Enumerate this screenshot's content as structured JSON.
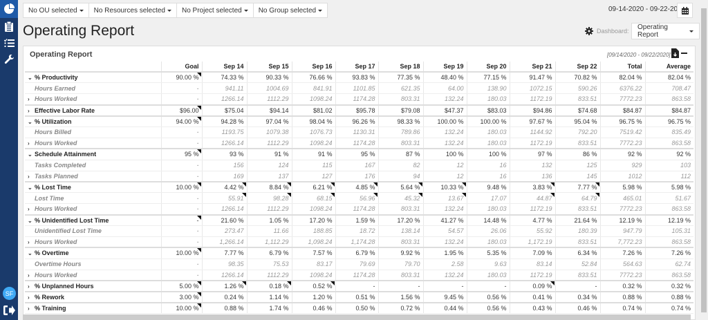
{
  "sidebar": {
    "items": [
      {
        "name": "dashboard",
        "icon": "pie-chart-icon"
      },
      {
        "name": "reports",
        "icon": "clipboard-icon"
      },
      {
        "name": "tasks",
        "icon": "checklist-icon"
      },
      {
        "name": "settings",
        "icon": "wrench-icon"
      }
    ],
    "avatar_initials": "SF",
    "logout_icon": "sign-out-icon"
  },
  "filters": {
    "ou": "No OU selected",
    "resources": "No Resources selected",
    "project": "No Project selected",
    "group": "No Group selected"
  },
  "date_range": "09-14-2020 - 09-22-2020",
  "page_title": "Operating Report",
  "dashboard": {
    "label": "Dashboard:",
    "selected": "Operating Report"
  },
  "panel": {
    "title": "Operating Report",
    "range": "[09/14/2020 - 09/22/2020]"
  },
  "table": {
    "columns": [
      "",
      "Goal",
      "Sep 14",
      "Sep 15",
      "Sep 16",
      "Sep 17",
      "Sep 18",
      "Sep 19",
      "Sep 20",
      "Sep 21",
      "Sep 22",
      "Total",
      "Average"
    ],
    "rows": [
      {
        "type": "group",
        "toggle": "v",
        "label": "% Productivity",
        "cells": [
          "90.00 %",
          "74.33 %",
          "90.33 %",
          "76.66 %",
          "93.83 %",
          "77.35 %",
          "48.40 %",
          "77.15 %",
          "91.47 %",
          "70.82 %",
          "82.04 %",
          "82.04 %"
        ],
        "flags": [
          0
        ]
      },
      {
        "type": "sub",
        "toggle": "",
        "label": "Hours Earned",
        "cells": [
          "-",
          "941.11",
          "1004.69",
          "841.91",
          "1101.85",
          "621.35",
          "64.00",
          "138.90",
          "1072.15",
          "590.26",
          "6376.22",
          "708.47"
        ],
        "flags": []
      },
      {
        "type": "sub",
        "toggle": ">",
        "label": "Hours Worked",
        "cells": [
          "-",
          "1266.14",
          "1112.29",
          "1098.24",
          "1174.28",
          "803.31",
          "132.24",
          "180.03",
          "1172.19",
          "833.51",
          "7772.23",
          "863.58"
        ],
        "flags": []
      },
      {
        "type": "group",
        "toggle": ">",
        "label": "Effective Labor Rate",
        "cells": [
          "$96.00",
          "$75.04",
          "$94.14",
          "$81.02",
          "$95.78",
          "$79.08",
          "$47.37",
          "$83.03",
          "$94.86",
          "$74.68",
          "$84.87",
          "$84.87"
        ],
        "flags": [
          0
        ]
      },
      {
        "type": "group",
        "toggle": "v",
        "label": "% Utilization",
        "cells": [
          "94.00 %",
          "94.28 %",
          "97.04 %",
          "98.04 %",
          "96.26 %",
          "98.33 %",
          "100.00 %",
          "100.00 %",
          "97.67 %",
          "95.04 %",
          "96.75 %",
          "96.75 %"
        ],
        "flags": [
          0
        ]
      },
      {
        "type": "sub",
        "toggle": "",
        "label": "Hours Billed",
        "cells": [
          "-",
          "1193.75",
          "1079.38",
          "1076.73",
          "1130.31",
          "789.86",
          "132.24",
          "180.03",
          "1144.92",
          "792.20",
          "7519.42",
          "835.49"
        ],
        "flags": []
      },
      {
        "type": "sub",
        "toggle": ">",
        "label": "Hours Worked",
        "cells": [
          "-",
          "1266.14",
          "1112.29",
          "1098.24",
          "1174.28",
          "803.31",
          "132.24",
          "180.03",
          "1172.19",
          "833.51",
          "7772.23",
          "863.58"
        ],
        "flags": []
      },
      {
        "type": "group",
        "toggle": "v",
        "label": "Schedule Attainment",
        "cells": [
          "95 %",
          "93 %",
          "91 %",
          "91 %",
          "95 %",
          "87 %",
          "100 %",
          "100 %",
          "97 %",
          "86 %",
          "92 %",
          "92 %"
        ],
        "flags": [
          0
        ]
      },
      {
        "type": "sub",
        "toggle": "",
        "label": "Tasks Completed",
        "cells": [
          "-",
          "156",
          "124",
          "115",
          "167",
          "82",
          "12",
          "16",
          "132",
          "125",
          "929",
          "103"
        ],
        "flags": []
      },
      {
        "type": "sub",
        "toggle": ">",
        "label": "Tasks Planned",
        "cells": [
          "-",
          "169",
          "137",
          "127",
          "176",
          "94",
          "12",
          "16",
          "136",
          "145",
          "1012",
          "112"
        ],
        "flags": []
      },
      {
        "type": "group",
        "toggle": "v",
        "label": "% Lost Time",
        "cells": [
          "10.00 %",
          "4.42 %",
          "8.84 %",
          "6.21 %",
          "4.85 %",
          "5.64 %",
          "10.33 %",
          "9.48 %",
          "3.83 %",
          "7.77 %",
          "5.98 %",
          "5.98 %"
        ],
        "flags": [
          0,
          1,
          2,
          3,
          4,
          5,
          6,
          8,
          9
        ]
      },
      {
        "type": "sub",
        "toggle": "",
        "label": "Lost Time",
        "cells": [
          "-",
          "55.91",
          "98.28",
          "68.15",
          "56.96",
          "45.32",
          "13.67",
          "17.07",
          "44.87",
          "64.79",
          "465.01",
          "51.67"
        ],
        "flags": [
          1,
          2,
          3,
          4,
          5,
          6,
          8,
          9
        ]
      },
      {
        "type": "sub",
        "toggle": ">",
        "label": "Hours Worked",
        "cells": [
          "-",
          "1266.14",
          "1112.29",
          "1098.24",
          "1174.28",
          "803.31",
          "132.24",
          "180.03",
          "1172.19",
          "833.51",
          "7772.23",
          "863.58"
        ],
        "flags": []
      },
      {
        "type": "group",
        "toggle": "v",
        "label": "% Unidentified Lost Time",
        "cells": [
          "-",
          "21.60 %",
          "1.05 %",
          "17.20 %",
          "1.59 %",
          "17.20 %",
          "41.27 %",
          "14.48 %",
          "4.77 %",
          "21.64 %",
          "12.19 %",
          "12.19 %"
        ],
        "flags": [
          0
        ]
      },
      {
        "type": "sub",
        "toggle": "",
        "label": "Unidentified Lost Time",
        "cells": [
          "-",
          "273.47",
          "11.66",
          "188.85",
          "18.72",
          "138.14",
          "54.57",
          "26.06",
          "55.92",
          "180.39",
          "947.79",
          "105.31"
        ],
        "flags": []
      },
      {
        "type": "sub",
        "toggle": ">",
        "label": "Hours Worked",
        "cells": [
          "-",
          "1,266.14",
          "1,112.29",
          "1,098.24",
          "1,174.28",
          "803.31",
          "132.24",
          "180.03",
          "1,172.19",
          "833.51",
          "7,772.23",
          "863.58"
        ],
        "flags": []
      },
      {
        "type": "group",
        "toggle": "v",
        "label": "% Overtime",
        "cells": [
          "10.00 %",
          "7.77 %",
          "6.79 %",
          "7.57 %",
          "6.79 %",
          "9.92 %",
          "1.95 %",
          "5.35 %",
          "7.09 %",
          "6.34 %",
          "7.26 %",
          "7.26 %"
        ],
        "flags": [
          0
        ]
      },
      {
        "type": "sub",
        "toggle": "",
        "label": "Overtime Hours",
        "cells": [
          "-",
          "98.35",
          "75.53",
          "83.17",
          "79.69",
          "79.70",
          "2.58",
          "9.63",
          "83.14",
          "52.84",
          "564.63",
          "62.74"
        ],
        "flags": []
      },
      {
        "type": "sub",
        "toggle": ">",
        "label": "Hours Worked",
        "cells": [
          "-",
          "1266.14",
          "1112.29",
          "1098.24",
          "1174.28",
          "803.31",
          "132.24",
          "180.03",
          "1172.19",
          "833.51",
          "7772.23",
          "863.58"
        ],
        "flags": []
      },
      {
        "type": "group",
        "toggle": ">",
        "label": "% Unplanned Hours",
        "cells": [
          "5.00 %",
          "1.26 %",
          "0.18 %",
          "0.52 %",
          "-",
          "-",
          "-",
          "-",
          "0.09 %",
          "-",
          "0.32 %",
          "0.32 %"
        ],
        "flags": [
          0,
          1,
          2,
          3,
          8
        ]
      },
      {
        "type": "group",
        "toggle": ">",
        "label": "% Rework",
        "cells": [
          "3.00 %",
          "0.24 %",
          "1.14 %",
          "1.20 %",
          "0.51 %",
          "1.56 %",
          "9.45 %",
          "0.56 %",
          "0.41 %",
          "0.34 %",
          "0.88 %",
          "0.88 %"
        ],
        "flags": [
          0
        ]
      },
      {
        "type": "group",
        "toggle": ">",
        "label": "% Training",
        "cells": [
          "10.00 %",
          "0.88 %",
          "1.74 %",
          "0.46 %",
          "0.50 %",
          "0.72 %",
          "0.44 %",
          "0.56 %",
          "0.43 %",
          "0.46 %",
          "0.74 %",
          "0.74 %"
        ],
        "flags": [
          0
        ]
      }
    ]
  }
}
